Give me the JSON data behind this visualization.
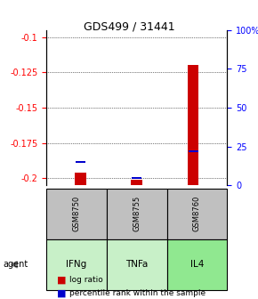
{
  "title": "GDS499 / 31441",
  "categories": [
    "IFNg",
    "TNFa",
    "IL4"
  ],
  "sample_ids": [
    "GSM8750",
    "GSM8755",
    "GSM8760"
  ],
  "log_ratios": [
    -0.196,
    -0.201,
    -0.12
  ],
  "percentile_ranks": [
    15,
    5,
    22
  ],
  "ylim_left": [
    -0.205,
    -0.095
  ],
  "yticks_left": [
    -0.2,
    -0.175,
    -0.15,
    -0.125,
    -0.1
  ],
  "yticks_right": [
    0,
    25,
    50,
    75,
    100
  ],
  "bar_color": "#cc0000",
  "percentile_color": "#0000cc",
  "cell_colors_sample": [
    "#c0c0c0",
    "#c0c0c0",
    "#c0c0c0"
  ],
  "cell_colors_agent": [
    "#c8f0c8",
    "#c8f0c8",
    "#90e890"
  ],
  "background_color": "#ffffff",
  "grid_color": "#000000",
  "bar_width": 0.5,
  "legend_square_size": 8,
  "percentile_bar_bottom": -0.205,
  "percentile_bar_scale": 0.11
}
